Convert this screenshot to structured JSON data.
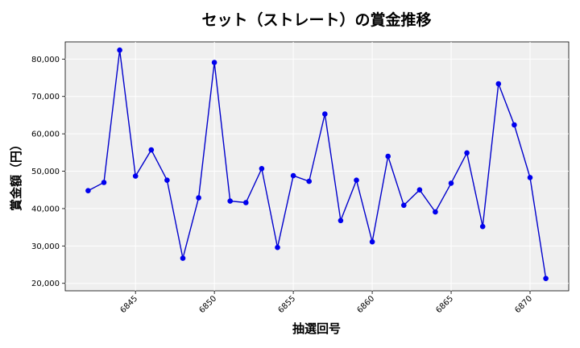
{
  "chart_data": {
    "type": "line",
    "title": "セット（ストレート）の賞金推移",
    "xlabel": "抽選回号",
    "ylabel": "賞金額（円）",
    "x": [
      6842,
      6843,
      6844,
      6845,
      6846,
      6847,
      6848,
      6849,
      6850,
      6851,
      6852,
      6853,
      6854,
      6855,
      6856,
      6857,
      6858,
      6859,
      6860,
      6861,
      6862,
      6863,
      6864,
      6865,
      6866,
      6867,
      6868,
      6869,
      6870,
      6871
    ],
    "y": [
      44800,
      47000,
      82400,
      48700,
      55700,
      47600,
      26700,
      42900,
      79100,
      42000,
      41600,
      50700,
      29600,
      48800,
      47300,
      65300,
      36800,
      47600,
      31100,
      54000,
      40900,
      45000,
      39100,
      46800,
      54900,
      35200,
      73400,
      62400,
      48300,
      21300
    ],
    "xlim": [
      6840.55,
      6872.45
    ],
    "ylim": [
      18000,
      84600
    ],
    "xticks": [
      6845,
      6850,
      6855,
      6860,
      6865,
      6870
    ],
    "yticks": [
      20000,
      30000,
      40000,
      50000,
      60000,
      70000,
      80000
    ],
    "ytick_labels": [
      "20,000",
      "30,000",
      "40,000",
      "50,000",
      "60,000",
      "70,000",
      "80,000"
    ],
    "grid": true,
    "line_color": "#0000cc",
    "marker_color": "#0000ee",
    "plot_bg": "#efefef"
  }
}
